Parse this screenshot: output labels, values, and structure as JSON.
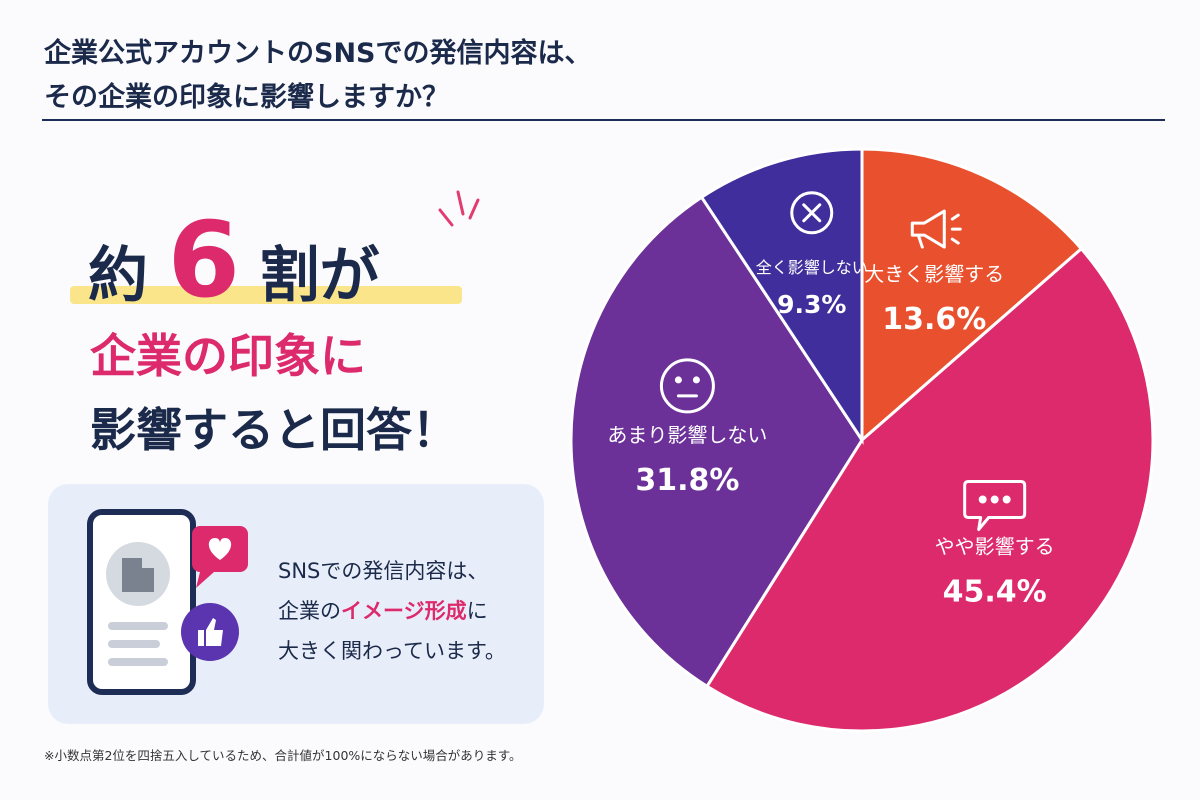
{
  "header": {
    "title": [
      "企業公式アカウントのSNSでの発信内容は、",
      "その企業の印象に影響しますか？"
    ]
  },
  "headline": {
    "parts": [
      "約",
      "6",
      "割が"
    ],
    "line2": "企業の印象に",
    "line3": "影響すると回答！"
  },
  "card": {
    "line1": "SNSでの発信内容は、",
    "line2": [
      "企業の",
      "イメージ形成",
      "に"
    ],
    "line3": "大きく関わっています。"
  },
  "footnote": "※小数点第2位を四捨五入しているため、合計値が100%にならない場合があります。",
  "chart_data": {
    "type": "pie",
    "categories": [
      "大きく影響する",
      "やや影響する",
      "あまり影響しない",
      "全く影響しない"
    ],
    "values": [
      13.6,
      45.4,
      31.8,
      9.3
    ],
    "value_labels": [
      "13.6%",
      "45.4%",
      "31.8%",
      "9.3%"
    ],
    "colors": [
      "#e9502e",
      "#dc2a6c",
      "#6b3199",
      "#3f2e9b"
    ]
  }
}
